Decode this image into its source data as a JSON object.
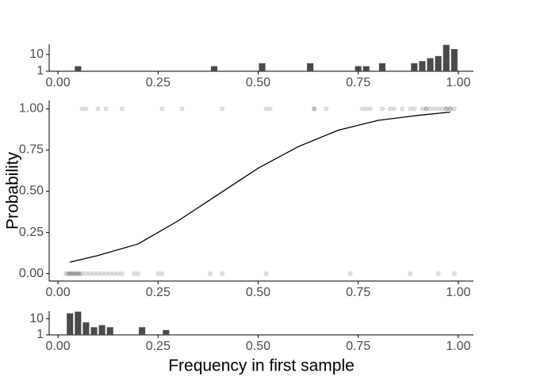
{
  "chart_data": [
    {
      "type": "histogram",
      "log_y": true,
      "color": "#4a4a4a",
      "bins": [
        0,
        0.02,
        0.04,
        0.06,
        0.08,
        0.1,
        0.12,
        0.14,
        0.16,
        0.18,
        0.2,
        0.22,
        0.24,
        0.26,
        0.28,
        0.3,
        0.32,
        0.34,
        0.36,
        0.38,
        0.4,
        0.42,
        0.44,
        0.46,
        0.48,
        0.5,
        0.52,
        0.54,
        0.56,
        0.58,
        0.6,
        0.62,
        0.64,
        0.66,
        0.68,
        0.7,
        0.72,
        0.74,
        0.76,
        0.78,
        0.8,
        0.82,
        0.84,
        0.86,
        0.88,
        0.9,
        0.92,
        0.94,
        0.96,
        0.98,
        1.0
      ],
      "values": [
        0,
        0,
        2,
        0,
        0,
        0,
        0,
        0,
        0,
        0,
        0,
        0,
        0,
        0,
        0,
        0,
        0,
        0,
        0,
        2,
        0,
        0,
        0,
        0,
        0,
        3,
        0,
        0,
        0,
        0,
        0,
        3,
        0,
        0,
        0,
        0,
        0,
        2,
        2,
        0,
        3,
        0,
        0,
        0,
        3,
        4,
        6,
        8,
        37,
        21
      ],
      "xlim": [
        -0.022,
        1.038
      ],
      "xticks": [
        {
          "value": 0,
          "label": "0.00"
        },
        {
          "value": 0.25,
          "label": "0.25"
        },
        {
          "value": 0.5,
          "label": "0.50"
        },
        {
          "value": 0.75,
          "label": "0.75"
        },
        {
          "value": 1,
          "label": "1.00"
        }
      ],
      "ylim": [
        1,
        40
      ],
      "yticks": [
        1,
        10
      ]
    },
    {
      "type": "scatter",
      "ylabel": "Probability",
      "points": {
        "color": "#000000",
        "x": [
          0.06,
          0.07,
          0.1,
          0.12,
          0.16,
          0.26,
          0.31,
          0.41,
          0.52,
          0.53,
          0.64,
          0.64,
          0.67,
          0.76,
          0.77,
          0.78,
          0.81,
          0.83,
          0.84,
          0.86,
          0.88,
          0.89,
          0.91,
          0.92,
          0.92,
          0.93,
          0.94,
          0.95,
          0.96,
          0.97,
          0.97,
          0.98,
          0.98,
          0.99,
          0.02,
          0.025,
          0.03,
          0.03,
          0.035,
          0.04,
          0.04,
          0.045,
          0.05,
          0.05,
          0.055,
          0.06,
          0.07,
          0.08,
          0.09,
          0.1,
          0.11,
          0.12,
          0.13,
          0.14,
          0.15,
          0.16,
          0.19,
          0.2,
          0.25,
          0.26,
          0.38,
          0.41,
          0.52,
          0.73,
          0.88,
          0.95,
          0.99
        ],
        "values": [
          1,
          1,
          1,
          1,
          1,
          1,
          1,
          1,
          1,
          1,
          1,
          1,
          1,
          1,
          1,
          1,
          1,
          1,
          1,
          1,
          1,
          1,
          1,
          1,
          1,
          1,
          1,
          1,
          1,
          1,
          1,
          1,
          1,
          1,
          0,
          0,
          0,
          0,
          0,
          0,
          0,
          0,
          0,
          0,
          0,
          0,
          0,
          0,
          0,
          0,
          0,
          0,
          0,
          0,
          0,
          0,
          0,
          0,
          0,
          0,
          0,
          0,
          0,
          0,
          0,
          0,
          0
        ]
      },
      "line": {
        "color": "#000000",
        "x": [
          0.03,
          0.1,
          0.2,
          0.25,
          0.3,
          0.4,
          0.5,
          0.6,
          0.7,
          0.8,
          0.9,
          0.98
        ],
        "values": [
          0.07,
          0.11,
          0.18,
          0.25,
          0.32,
          0.48,
          0.64,
          0.77,
          0.87,
          0.93,
          0.96,
          0.98
        ]
      },
      "xlim": [
        -0.022,
        1.038
      ],
      "xticks": [
        {
          "value": 0,
          "label": "0.00"
        },
        {
          "value": 0.25,
          "label": "0.25"
        },
        {
          "value": 0.5,
          "label": "0.50"
        },
        {
          "value": 0.75,
          "label": "0.75"
        },
        {
          "value": 1,
          "label": "1.00"
        }
      ],
      "ylim": [
        -0.045,
        1.05
      ],
      "yticks": [
        {
          "value": 0,
          "label": "0.00"
        },
        {
          "value": 0.25,
          "label": "0.25"
        },
        {
          "value": 0.5,
          "label": "0.50"
        },
        {
          "value": 0.75,
          "label": "0.75"
        },
        {
          "value": 1,
          "label": "1.00"
        }
      ]
    },
    {
      "type": "histogram",
      "log_y": true,
      "color": "#4a4a4a",
      "xlabel": "Frequency in first sample",
      "bins": [
        0,
        0.02,
        0.04,
        0.06,
        0.08,
        0.1,
        0.12,
        0.14,
        0.16,
        0.18,
        0.2,
        0.22,
        0.24,
        0.26,
        0.28
      ],
      "values": [
        0,
        22,
        28,
        6,
        3,
        4,
        3,
        0,
        0,
        0,
        3,
        0,
        0,
        2
      ],
      "xlim": [
        -0.022,
        1.038
      ],
      "xticks": [
        {
          "value": 0,
          "label": "0.00"
        },
        {
          "value": 0.25,
          "label": "0.25"
        },
        {
          "value": 0.5,
          "label": "0.50"
        },
        {
          "value": 0.75,
          "label": "0.75"
        },
        {
          "value": 1,
          "label": "1.00"
        }
      ],
      "ylim": [
        1,
        30
      ],
      "yticks": [
        1,
        10
      ]
    }
  ]
}
